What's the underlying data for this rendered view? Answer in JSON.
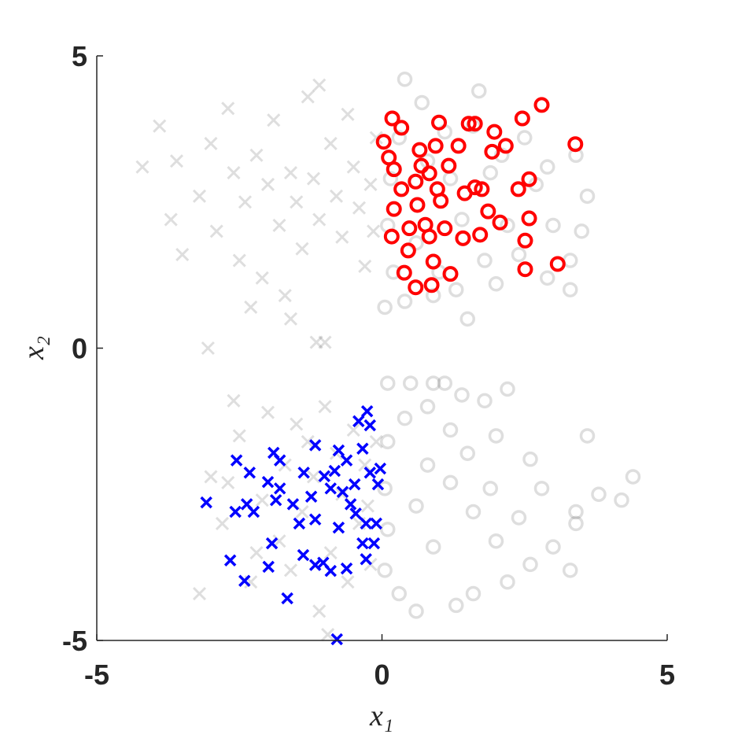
{
  "chart_data": {
    "type": "scatter",
    "xlabel": "x₁",
    "ylabel": "x₂",
    "xlim": [
      -5,
      5
    ],
    "ylim": [
      -5,
      5
    ],
    "xticks": [
      -5,
      0,
      5
    ],
    "yticks": [
      -5,
      0,
      5
    ],
    "grid": false,
    "series": [
      {
        "marker": "x",
        "color": "#000000",
        "opacity": 0.13,
        "x": [
          -4.2,
          -3.9,
          -3.6,
          -3.7,
          -3.5,
          -3.2,
          -3.0,
          -2.9,
          -2.7,
          -2.6,
          -2.5,
          -2.4,
          -2.2,
          -2.1,
          -2.0,
          -1.9,
          -1.8,
          -1.7,
          -1.6,
          -1.5,
          -1.4,
          -1.3,
          -1.2,
          -1.1,
          -1.0,
          -0.9,
          -0.8,
          -0.7,
          -0.6,
          -0.5,
          -0.4,
          -0.3,
          -0.2,
          -0.1,
          -0.15,
          -3.05,
          -2.3,
          -1.6,
          -1.15,
          -1.1
        ],
        "y": [
          3.1,
          3.8,
          3.2,
          2.2,
          1.6,
          2.6,
          3.5,
          2.0,
          4.1,
          3.0,
          1.5,
          2.5,
          3.3,
          1.2,
          2.8,
          3.9,
          2.1,
          0.9,
          3.0,
          2.5,
          1.7,
          4.3,
          2.9,
          2.2,
          0.1,
          3.5,
          2.6,
          1.9,
          4.0,
          3.1,
          2.4,
          1.4,
          2.8,
          3.6,
          2.0,
          0.0,
          0.7,
          0.5,
          0.1,
          4.5
        ]
      },
      {
        "marker": "x",
        "color": "#000000",
        "opacity": 0.13,
        "x": [
          -3.2,
          -3.0,
          -2.6,
          -2.8,
          -2.5,
          -2.3,
          -2.1,
          -2.0,
          -1.8,
          -1.7,
          -1.6,
          -1.5,
          -1.4,
          -1.2,
          -1.1,
          -1.0,
          -0.9,
          -0.8,
          -0.7,
          -0.6,
          -0.5,
          -0.4,
          -0.3,
          -0.2,
          -0.1,
          -0.25,
          -2.7,
          -1.3,
          -0.95,
          -2.2
        ],
        "y": [
          -4.2,
          -2.2,
          -0.9,
          -3.0,
          -1.5,
          -4.0,
          -2.6,
          -1.1,
          -3.3,
          -2.0,
          -3.8,
          -1.3,
          -2.8,
          -2.2,
          -4.5,
          -1.0,
          -3.5,
          -1.8,
          -2.5,
          -4.0,
          -1.4,
          -3.0,
          -2.0,
          -3.7,
          -1.6,
          -2.7,
          -2.3,
          -1.6,
          -4.9,
          -3.5
        ]
      },
      {
        "marker": "o",
        "color": "#000000",
        "opacity": 0.13,
        "x": [
          0.4,
          1.7,
          1.6,
          2.5,
          3.4,
          3.6,
          3.3,
          3.3,
          2.9,
          2.0,
          1.5,
          0.9,
          0.4,
          0.05,
          0.2,
          0.1,
          0.15,
          0.3,
          0.7,
          1.1,
          1.9,
          2.2,
          2.7,
          3.0,
          2.4,
          1.8,
          1.4,
          1.2,
          0.8,
          0.6,
          1.0,
          2.1,
          2.9,
          3.5,
          1.3
        ],
        "y": [
          4.6,
          4.4,
          3.8,
          3.6,
          3.3,
          2.6,
          1.5,
          1.0,
          1.2,
          1.1,
          0.5,
          0.9,
          0.8,
          0.7,
          1.3,
          2.1,
          2.9,
          3.6,
          4.2,
          3.7,
          3.0,
          2.1,
          2.8,
          2.1,
          1.6,
          1.5,
          2.2,
          2.9,
          3.2,
          1.8,
          1.3,
          3.3,
          3.1,
          2.0,
          1.0
        ]
      },
      {
        "marker": "o",
        "color": "#000000",
        "opacity": 0.13,
        "x": [
          0.1,
          0.5,
          0.9,
          1.1,
          1.4,
          1.8,
          2.2,
          3.6,
          4.4,
          4.2,
          3.8,
          3.4,
          3.4,
          3.3,
          3.0,
          2.6,
          2.2,
          1.6,
          1.3,
          0.6,
          0.3,
          0.05,
          0.1,
          0.05,
          0.1,
          0.4,
          0.8,
          1.2,
          1.5,
          2.0,
          2.6,
          2.8,
          2.4,
          2.0,
          1.6,
          1.2,
          0.8,
          0.6,
          0.9,
          1.9
        ],
        "y": [
          -0.6,
          -0.6,
          -0.6,
          -0.6,
          -0.8,
          -0.9,
          -0.7,
          -1.5,
          -2.2,
          -2.6,
          -2.5,
          -2.8,
          -3.0,
          -3.8,
          -3.4,
          -3.7,
          -4.0,
          -4.2,
          -4.4,
          -4.5,
          -4.2,
          -3.8,
          -3.1,
          -2.4,
          -1.6,
          -1.2,
          -1.0,
          -1.4,
          -1.8,
          -1.5,
          -1.9,
          -2.4,
          -2.9,
          -3.3,
          -2.8,
          -2.3,
          -2.0,
          -2.7,
          -3.4,
          -2.4
        ]
      },
      {
        "marker": "o",
        "color": "#ff0000",
        "opacity": 1,
        "x": [
          0.18,
          2.8,
          2.46,
          3.39,
          1.0,
          0.34,
          1.52,
          1.63,
          1.97,
          0.03,
          2.17,
          1.93,
          0.66,
          0.94,
          1.34,
          0.12,
          2.58,
          2.39,
          1.63,
          1.75,
          0.59,
          0.83,
          0.34,
          0.21,
          0.62,
          1.03,
          0.69,
          1.17,
          1.45,
          1.86,
          2.58,
          2.51,
          2.07,
          0.17,
          0.46,
          0.83,
          0.9,
          1.42,
          1.72,
          0.39,
          1.2,
          0.59,
          0.87,
          2.51,
          3.08,
          0.76,
          1.1,
          0.48,
          0.97,
          0.21
        ],
        "y": [
          3.93,
          4.16,
          3.93,
          3.49,
          3.86,
          3.77,
          3.84,
          3.84,
          3.7,
          3.53,
          3.46,
          3.36,
          3.39,
          3.46,
          3.46,
          3.26,
          2.89,
          2.72,
          2.75,
          2.72,
          2.85,
          2.99,
          2.72,
          2.38,
          2.45,
          2.52,
          3.12,
          3.12,
          2.65,
          2.34,
          2.22,
          1.84,
          2.15,
          1.91,
          1.67,
          1.91,
          1.48,
          1.88,
          1.94,
          1.29,
          1.27,
          1.04,
          1.08,
          1.35,
          1.44,
          2.11,
          2.05,
          2.05,
          2.72,
          3.06
        ]
      },
      {
        "marker": "x",
        "color": "#0000ff",
        "opacity": 1,
        "x": [
          -0.26,
          -0.41,
          -0.21,
          -3.08,
          -2.57,
          -2.37,
          -2.25,
          -2.66,
          -2.41,
          -1.99,
          -1.66,
          -0.79,
          -1.93,
          -2.55,
          -2.32,
          -1.9,
          -1.79,
          -2.0,
          -1.79,
          -1.86,
          -1.17,
          -1.37,
          -1.01,
          -0.76,
          -0.34,
          -0.62,
          -0.9,
          -0.69,
          -0.48,
          -0.07,
          -0.21,
          -1.45,
          -1.17,
          -0.76,
          -0.28,
          -0.1,
          -1.38,
          -1.17,
          -0.9,
          -0.62,
          -0.28,
          -0.34,
          -1.03,
          -1.24,
          -0.55,
          -0.14,
          -1.56,
          -0.46,
          -0.03,
          -0.83
        ],
        "y": [
          -1.08,
          -1.25,
          -1.32,
          -2.64,
          -2.8,
          -2.67,
          -2.8,
          -3.63,
          -3.98,
          -3.74,
          -4.28,
          -4.98,
          -3.34,
          -1.92,
          -2.13,
          -1.79,
          -1.92,
          -2.29,
          -2.4,
          -2.6,
          -1.66,
          -2.13,
          -2.19,
          -1.75,
          -1.72,
          -1.92,
          -2.4,
          -2.46,
          -2.33,
          -2.33,
          -2.13,
          -3.0,
          -2.93,
          -3.07,
          -3.0,
          -3.0,
          -3.54,
          -3.71,
          -3.81,
          -3.77,
          -3.61,
          -3.34,
          -3.67,
          -2.54,
          -2.67,
          -3.34,
          -2.67,
          -2.83,
          -2.06,
          -2.1
        ]
      }
    ]
  }
}
